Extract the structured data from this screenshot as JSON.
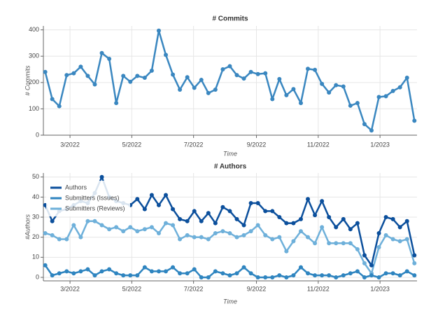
{
  "chart_data": [
    {
      "type": "line",
      "title": "# Commits",
      "x_label": "Time",
      "y_label": "# Commits",
      "color": "#3a87c0",
      "grid": true,
      "x": [
        2022.095,
        2022.114,
        2022.133,
        2022.153,
        2022.172,
        2022.191,
        2022.21,
        2022.229,
        2022.248,
        2022.268,
        2022.287,
        2022.306,
        2022.325,
        2022.344,
        2022.364,
        2022.383,
        2022.402,
        2022.421,
        2022.44,
        2022.459,
        2022.479,
        2022.498,
        2022.517,
        2022.536,
        2022.555,
        2022.575,
        2022.594,
        2022.613,
        2022.632,
        2022.651,
        2022.67,
        2022.69,
        2022.709,
        2022.728,
        2022.747,
        2022.766,
        2022.786,
        2022.805,
        2022.824,
        2022.843,
        2022.862,
        2022.881,
        2022.901,
        2022.92,
        2022.939,
        2022.958,
        2022.977,
        2022.997,
        2023.016,
        2023.035,
        2023.054,
        2023.073,
        2023.093
      ],
      "values": [
        240,
        137,
        110,
        228,
        235,
        260,
        225,
        193,
        312,
        290,
        122,
        225,
        203,
        225,
        218,
        245,
        397,
        305,
        230,
        173,
        220,
        180,
        210,
        160,
        173,
        250,
        262,
        228,
        215,
        240,
        232,
        235,
        137,
        213,
        152,
        175,
        122,
        252,
        248,
        195,
        162,
        190,
        185,
        112,
        122,
        42,
        18,
        145,
        148,
        168,
        182,
        218,
        55
      ],
      "xlim": [
        2022.09,
        2023.1
      ],
      "xticks": [
        {
          "value": 2022.162,
          "label": "3/2022"
        },
        {
          "value": 2022.329,
          "label": "5/2022"
        },
        {
          "value": 2022.496,
          "label": "7/2022"
        },
        {
          "value": 2022.666,
          "label": "9/2022"
        },
        {
          "value": 2022.833,
          "label": "11/2022"
        },
        {
          "value": 2023.0,
          "label": "1/2023"
        }
      ],
      "ylim": [
        0,
        415
      ],
      "yticks": [
        0,
        100,
        200,
        300,
        400
      ]
    },
    {
      "type": "line",
      "title": "# Authors",
      "x_label": "Time",
      "y_label": "#Authors",
      "grid": true,
      "legend": "top-left",
      "x": [
        2022.095,
        2022.114,
        2022.133,
        2022.153,
        2022.172,
        2022.191,
        2022.21,
        2022.229,
        2022.248,
        2022.268,
        2022.287,
        2022.306,
        2022.325,
        2022.344,
        2022.364,
        2022.383,
        2022.402,
        2022.421,
        2022.44,
        2022.459,
        2022.479,
        2022.498,
        2022.517,
        2022.536,
        2022.555,
        2022.575,
        2022.594,
        2022.613,
        2022.632,
        2022.651,
        2022.67,
        2022.69,
        2022.709,
        2022.728,
        2022.747,
        2022.766,
        2022.786,
        2022.805,
        2022.824,
        2022.843,
        2022.862,
        2022.881,
        2022.901,
        2022.92,
        2022.939,
        2022.958,
        2022.977,
        2022.997,
        2023.016,
        2023.035,
        2023.054,
        2023.073,
        2023.093
      ],
      "series": [
        {
          "name": "Authors",
          "color": "#0b4f9c",
          "values": [
            36,
            28,
            33,
            34,
            36,
            38,
            37,
            42,
            50,
            40,
            38,
            37,
            36,
            39,
            34,
            41,
            36,
            41,
            34,
            29,
            28,
            33,
            28,
            32,
            27,
            35,
            33,
            29,
            26,
            37,
            37,
            33,
            33,
            30,
            27,
            27,
            29,
            39,
            31,
            38,
            30,
            25,
            29,
            24,
            27,
            11,
            6,
            22,
            30,
            29,
            25,
            28,
            11
          ]
        },
        {
          "name": "Submitters (Issues)",
          "color": "#2f85c0",
          "values": [
            6,
            1,
            2,
            3,
            2,
            3,
            4,
            1,
            3,
            4,
            2,
            1,
            1,
            1,
            5,
            3,
            3,
            3,
            5,
            2,
            2,
            4,
            0,
            0,
            3,
            2,
            1,
            2,
            5,
            2,
            0,
            0,
            0,
            1,
            0,
            1,
            5,
            2,
            1,
            1,
            1,
            0,
            1,
            2,
            3,
            0,
            1,
            0,
            2,
            2,
            1,
            3,
            1
          ]
        },
        {
          "name": "Submitters (Reviews)",
          "color": "#6eb0da",
          "values": [
            22,
            21,
            19,
            19,
            26,
            20,
            28,
            28,
            26,
            24,
            25,
            23,
            25,
            23,
            24,
            25,
            22,
            27,
            26,
            19,
            21,
            20,
            20,
            19,
            22,
            23,
            22,
            20,
            21,
            23,
            26,
            21,
            19,
            20,
            13,
            18,
            23,
            20,
            17,
            25,
            17,
            17,
            17,
            17,
            14,
            7,
            2,
            15,
            21,
            19,
            18,
            19,
            7
          ]
        }
      ],
      "xlim": [
        2022.09,
        2023.1
      ],
      "xticks": [
        {
          "value": 2022.162,
          "label": "3/2022"
        },
        {
          "value": 2022.329,
          "label": "5/2022"
        },
        {
          "value": 2022.496,
          "label": "7/2022"
        },
        {
          "value": 2022.666,
          "label": "9/2022"
        },
        {
          "value": 2022.833,
          "label": "11/2022"
        },
        {
          "value": 2023.0,
          "label": "1/2023"
        }
      ],
      "ylim": [
        -1.75,
        52
      ],
      "yticks": [
        0,
        10,
        20,
        30,
        40,
        50
      ]
    }
  ]
}
